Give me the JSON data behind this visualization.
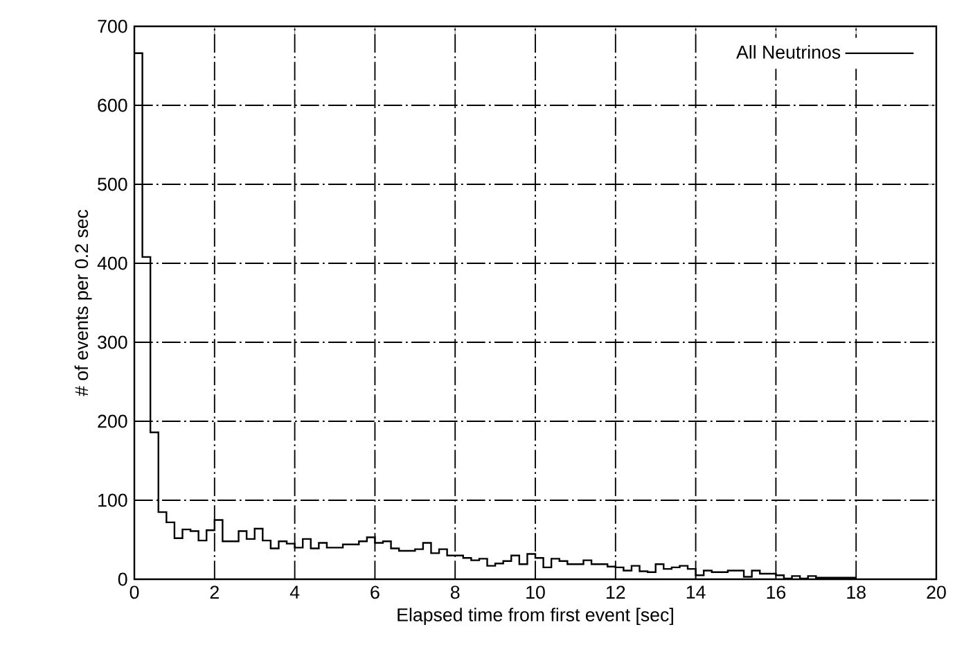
{
  "chart_data": {
    "type": "histogram",
    "xlabel": "Elapsed time from first event [sec]",
    "ylabel": "# of events per 0.2 sec",
    "bins": [
      0,
      0.2,
      0.4,
      0.6,
      0.8,
      1,
      1.2,
      1.4,
      1.6,
      1.8,
      2,
      2.2,
      2.4,
      2.6,
      2.8,
      3,
      3.2,
      3.4,
      3.6,
      3.8,
      4,
      4.2,
      4.4,
      4.6,
      4.8,
      5,
      5.2,
      5.4,
      5.6,
      5.8,
      6,
      6.2,
      6.4,
      6.6,
      6.8,
      7,
      7.2,
      7.4,
      7.6,
      7.8,
      8,
      8.2,
      8.4,
      8.6,
      8.8,
      9,
      9.2,
      9.4,
      9.6,
      9.8,
      10,
      10.2,
      10.4,
      10.6,
      10.8,
      11,
      11.2,
      11.4,
      11.6,
      11.8,
      12,
      12.2,
      12.4,
      12.6,
      12.8,
      13,
      13.2,
      13.4,
      13.6,
      13.8,
      14,
      14.2,
      14.4,
      14.6,
      14.8,
      15,
      15.2,
      15.4,
      15.6,
      15.8,
      16,
      16.2,
      16.4,
      16.6,
      16.8,
      17,
      17.2,
      17.4,
      17.6,
      17.8,
      18
    ],
    "series": [
      {
        "name": "All Neutrinos",
        "color": "#000000",
        "values": [
          666,
          408,
          186,
          85,
          72,
          52,
          63,
          61,
          49,
          62,
          75,
          48,
          48,
          61,
          51,
          64,
          49,
          39,
          48,
          45,
          40,
          51,
          39,
          46,
          40,
          40,
          44,
          44,
          48,
          53,
          46,
          48,
          39,
          36,
          36,
          38,
          46,
          33,
          38,
          30,
          30,
          27,
          24,
          26,
          17,
          20,
          23,
          30,
          19,
          32,
          27,
          15,
          26,
          23,
          19,
          19,
          24,
          19,
          19,
          16,
          15,
          11,
          17,
          10,
          9,
          19,
          13,
          15,
          17,
          13,
          5,
          11,
          9,
          9,
          11,
          11,
          3,
          11,
          7,
          7,
          5,
          1,
          4,
          1,
          4,
          2,
          2,
          2,
          2,
          2
        ]
      }
    ],
    "xlim": [
      0,
      20
    ],
    "ylim": [
      0,
      700
    ],
    "xticks": [
      0,
      2,
      4,
      6,
      8,
      10,
      12,
      14,
      16,
      18,
      20
    ],
    "yticks": [
      0,
      100,
      200,
      300,
      400,
      500,
      600,
      700
    ],
    "grid": true,
    "legend": "top right"
  }
}
